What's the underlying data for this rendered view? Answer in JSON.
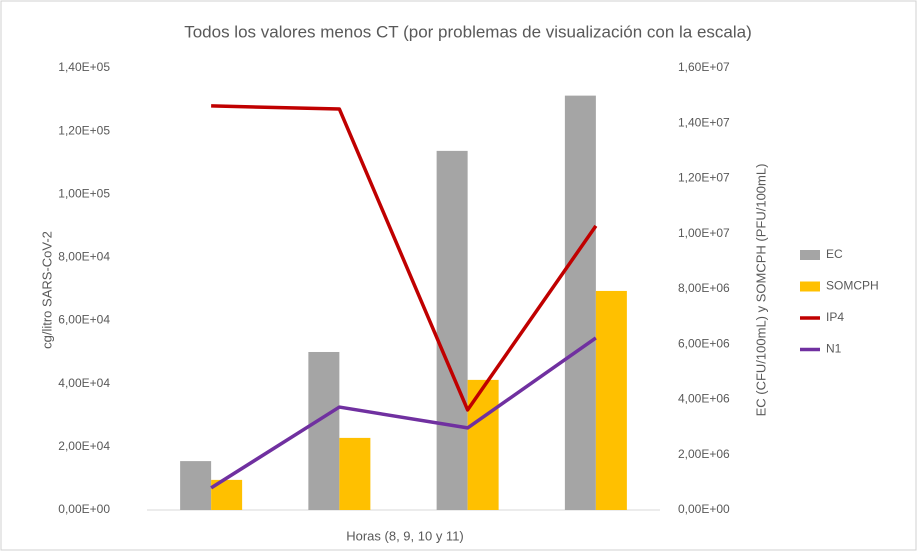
{
  "chart_data": {
    "type": "bar_line_combo",
    "title": "Todos los valores menos CT (por problemas de visualización con la escala)",
    "xlabel": "Horas (8, 9, 10 y 11)",
    "ylabel": "cg/litro SARS-CoV-2",
    "y2label": "EC (CFU/100mL) y SOMCPH (PFU/100mL)",
    "categories": [
      null,
      null,
      null,
      null
    ],
    "ylim": [
      0,
      140000
    ],
    "yticks": [
      {
        "value": 0,
        "label": "0,00E+00"
      },
      {
        "value": 20000,
        "label": "2,00E+04"
      },
      {
        "value": 40000,
        "label": "4,00E+04"
      },
      {
        "value": 60000,
        "label": "6,00E+04"
      },
      {
        "value": 80000,
        "label": "8,00E+04"
      },
      {
        "value": 100000,
        "label": "1,00E+05"
      },
      {
        "value": 120000,
        "label": "1,20E+05"
      },
      {
        "value": 140000,
        "label": "1,40E+05"
      }
    ],
    "y2lim": [
      0,
      16000000
    ],
    "y2ticks": [
      {
        "value": 0,
        "label": "0,00E+00"
      },
      {
        "value": 2000000,
        "label": "2,00E+06"
      },
      {
        "value": 4000000,
        "label": "4,00E+06"
      },
      {
        "value": 6000000,
        "label": "6,00E+06"
      },
      {
        "value": 8000000,
        "label": "8,00E+06"
      },
      {
        "value": 10000000,
        "label": "1,00E+07"
      },
      {
        "value": 12000000,
        "label": "1,20E+07"
      },
      {
        "value": 14000000,
        "label": "1,40E+07"
      },
      {
        "value": 16000000,
        "label": "1,60E+07"
      }
    ],
    "grid": false,
    "legend": "right",
    "series": [
      {
        "name": "EC",
        "type": "bar",
        "axis": "y2",
        "color": "#a5a5a5",
        "values": [
          1770000,
          5720000,
          13000000,
          15000000
        ]
      },
      {
        "name": "SOMCPH",
        "type": "bar",
        "axis": "y2",
        "color": "#ffc000",
        "values": [
          1090000,
          2610000,
          4710000,
          7930000
        ]
      },
      {
        "name": "IP4",
        "type": "line",
        "axis": "y",
        "color": "#c00000",
        "values": [
          128000,
          127000,
          31700,
          90000
        ]
      },
      {
        "name": "N1",
        "type": "line",
        "axis": "y",
        "color": "#7030a0",
        "values": [
          7000,
          32600,
          26000,
          54500
        ]
      }
    ]
  }
}
